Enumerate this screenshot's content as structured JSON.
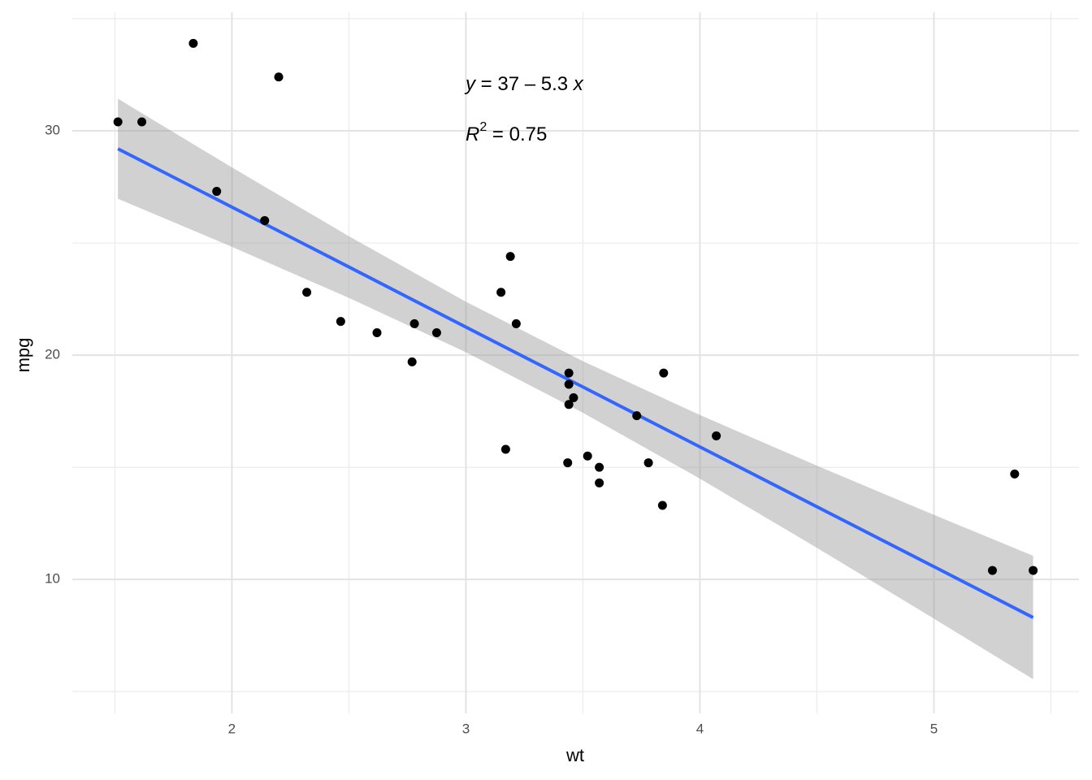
{
  "chart_data": {
    "type": "scatter",
    "x_label": "wt",
    "y_label": "mpg",
    "x": [
      2.62,
      2.875,
      2.32,
      3.215,
      3.44,
      3.46,
      3.57,
      3.19,
      3.15,
      3.44,
      3.44,
      4.07,
      3.73,
      3.78,
      5.25,
      5.424,
      5.345,
      2.2,
      1.615,
      1.835,
      2.465,
      3.52,
      3.435,
      3.84,
      3.845,
      1.935,
      2.14,
      1.513,
      3.17,
      2.77,
      3.57,
      2.78
    ],
    "values": [
      21.0,
      21.0,
      22.8,
      21.4,
      18.7,
      18.1,
      14.3,
      24.4,
      22.8,
      19.2,
      17.8,
      16.4,
      17.3,
      15.2,
      10.4,
      10.4,
      14.7,
      32.4,
      30.4,
      33.9,
      21.5,
      15.5,
      15.2,
      13.3,
      19.2,
      27.3,
      26.0,
      30.4,
      15.8,
      19.7,
      15.0,
      21.4
    ],
    "color": "#000000",
    "fit_x": [
      1.513,
      2,
      2.5,
      3,
      3.5,
      4,
      4.5,
      5,
      5.424
    ],
    "fit_values": [
      29.2,
      26.6,
      23.93,
      21.25,
      18.58,
      15.91,
      13.24,
      10.57,
      8.3
    ],
    "fit_lower": [
      26.97,
      24.83,
      22.55,
      20.13,
      17.43,
      14.49,
      11.41,
      8.25,
      5.55
    ],
    "fit_upper": [
      31.43,
      28.37,
      25.3,
      22.38,
      19.73,
      17.33,
      15.07,
      12.88,
      11.05
    ],
    "fit_color": "#3366FF",
    "band_color": "#999999",
    "equation": [
      "y",
      " = 37 – 5.3 ",
      "x"
    ],
    "r_squared": [
      "R",
      "2",
      " = 0.75"
    ],
    "xlim": [
      1.318,
      5.62
    ],
    "ylim": [
      4.86,
      35.29
    ],
    "xticks": [
      2,
      3,
      4,
      5
    ],
    "yticks": [
      10,
      20,
      30
    ],
    "x_minor_grid": [
      1.5,
      2.5,
      3.5,
      4.5,
      5.5
    ],
    "y_minor_grid": [
      5,
      15,
      25,
      35
    ],
    "grid": true
  }
}
